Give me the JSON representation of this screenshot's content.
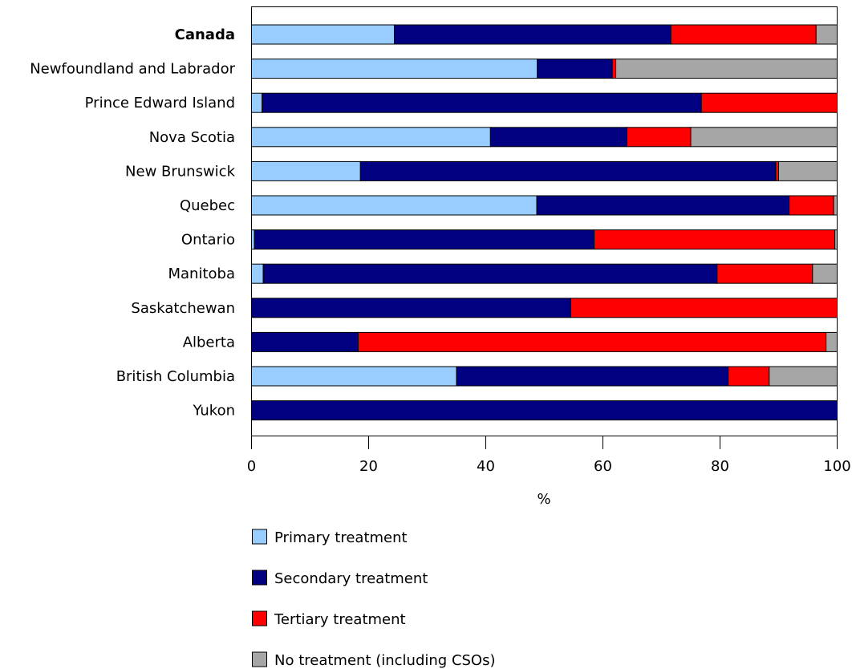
{
  "chart_data": {
    "type": "bar",
    "orientation": "horizontal",
    "stacked": true,
    "categories": [
      "Canada",
      "Newfoundland and Labrador",
      "Prince Edward Island",
      "Nova Scotia",
      "New Brunswick",
      "Quebec",
      "Ontario",
      "Manitoba",
      "Saskatchewan",
      "Alberta",
      "British Columbia",
      "Yukon"
    ],
    "bold_categories": [
      "Canada"
    ],
    "series": [
      {
        "name": "Primary treatment",
        "color": "#99ccff",
        "values": [
          24.4,
          48.8,
          1.8,
          40.8,
          18.6,
          48.7,
          0.5,
          2.0,
          0.0,
          0.0,
          35.0,
          0.0
        ]
      },
      {
        "name": "Secondary treatment",
        "color": "#000080",
        "values": [
          47.2,
          12.8,
          75.0,
          23.3,
          70.9,
          43.1,
          58.0,
          77.5,
          54.5,
          18.2,
          46.4,
          100.0
        ]
      },
      {
        "name": "Tertiary treatment",
        "color": "#ff0000",
        "values": [
          24.8,
          0.6,
          23.2,
          10.9,
          0.5,
          7.6,
          41.1,
          16.3,
          45.5,
          79.9,
          7.0,
          0.0
        ]
      },
      {
        "name": "No treatment (including CSOs)",
        "color": "#a6a6a6",
        "values": [
          3.6,
          37.8,
          0.0,
          25.0,
          10.0,
          0.6,
          0.4,
          4.2,
          0.0,
          1.9,
          11.6,
          0.0
        ]
      }
    ],
    "xlabel": "%",
    "ylabel": "",
    "xlim": [
      0,
      100
    ],
    "xticks": [
      0,
      20,
      40,
      60,
      80,
      100
    ],
    "grid": false,
    "legend_position": "bottom"
  }
}
